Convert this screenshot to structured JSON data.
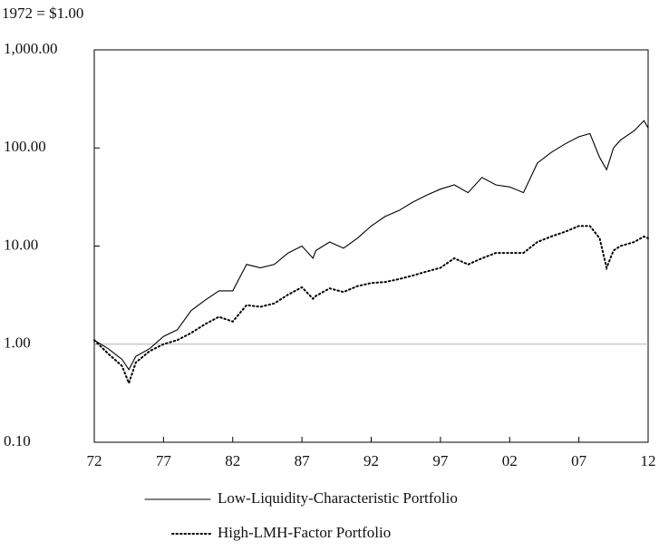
{
  "chart_data": {
    "type": "line",
    "title": "1972 = $1.00",
    "x": [
      1972,
      1973,
      1974,
      1974.5,
      1975,
      1976,
      1977,
      1978,
      1979,
      1980,
      1981,
      1982,
      1983,
      1984,
      1985,
      1986,
      1987,
      1987.8,
      1988,
      1989,
      1990,
      1991,
      1992,
      1993,
      1994,
      1995,
      1996,
      1997,
      1998,
      1999,
      2000,
      2001,
      2002,
      2003,
      2004,
      2005,
      2006,
      2007,
      2007.8,
      2008.5,
      2009,
      2009.5,
      2010,
      2011,
      2011.7,
      2012
    ],
    "series": [
      {
        "name": "Low-Liquidity-Characteristic Portfolio",
        "color": "#000000",
        "style": "solid",
        "values": [
          1.1,
          0.9,
          0.7,
          0.55,
          0.75,
          0.9,
          1.2,
          1.4,
          2.2,
          2.8,
          3.5,
          3.5,
          6.5,
          6.0,
          6.5,
          8.5,
          10,
          7.5,
          9,
          11,
          9.5,
          12,
          16,
          20,
          23,
          28,
          33,
          38,
          42,
          35,
          50,
          42,
          40,
          35,
          70,
          90,
          110,
          130,
          140,
          80,
          60,
          100,
          120,
          150,
          190,
          160
        ]
      },
      {
        "name": "High-LMH-Factor Portfolio",
        "color": "#000000",
        "style": "dotted",
        "values": [
          1.1,
          0.8,
          0.6,
          0.4,
          0.65,
          0.85,
          1.0,
          1.1,
          1.3,
          1.6,
          1.9,
          1.7,
          2.5,
          2.4,
          2.6,
          3.2,
          3.8,
          2.9,
          3.1,
          3.7,
          3.4,
          3.9,
          4.2,
          4.3,
          4.6,
          5.0,
          5.5,
          6.0,
          7.5,
          6.5,
          7.5,
          8.5,
          8.5,
          8.5,
          11,
          12.5,
          14,
          16,
          16,
          12,
          6,
          9,
          10,
          11,
          12.5,
          12
        ]
      }
    ],
    "xlim": [
      1972,
      2012
    ],
    "xticks": [
      {
        "value": 1972,
        "label": "72"
      },
      {
        "value": 1977,
        "label": "77"
      },
      {
        "value": 1982,
        "label": "82"
      },
      {
        "value": 1987,
        "label": "87"
      },
      {
        "value": 1992,
        "label": "92"
      },
      {
        "value": 1997,
        "label": "97"
      },
      {
        "value": 2002,
        "label": "02"
      },
      {
        "value": 2007,
        "label": "07"
      },
      {
        "value": 2012,
        "label": "12"
      }
    ],
    "ylim": [
      0.1,
      1000
    ],
    "yticks": [
      {
        "value": 0.1,
        "label": "0.10"
      },
      {
        "value": 1,
        "label": "1.00"
      },
      {
        "value": 10,
        "label": "10.00"
      },
      {
        "value": 100,
        "label": "100.00"
      },
      {
        "value": 1000,
        "label": "1,000.00"
      }
    ],
    "log_scale": true,
    "reference_line": 1,
    "legend": "bottom"
  }
}
